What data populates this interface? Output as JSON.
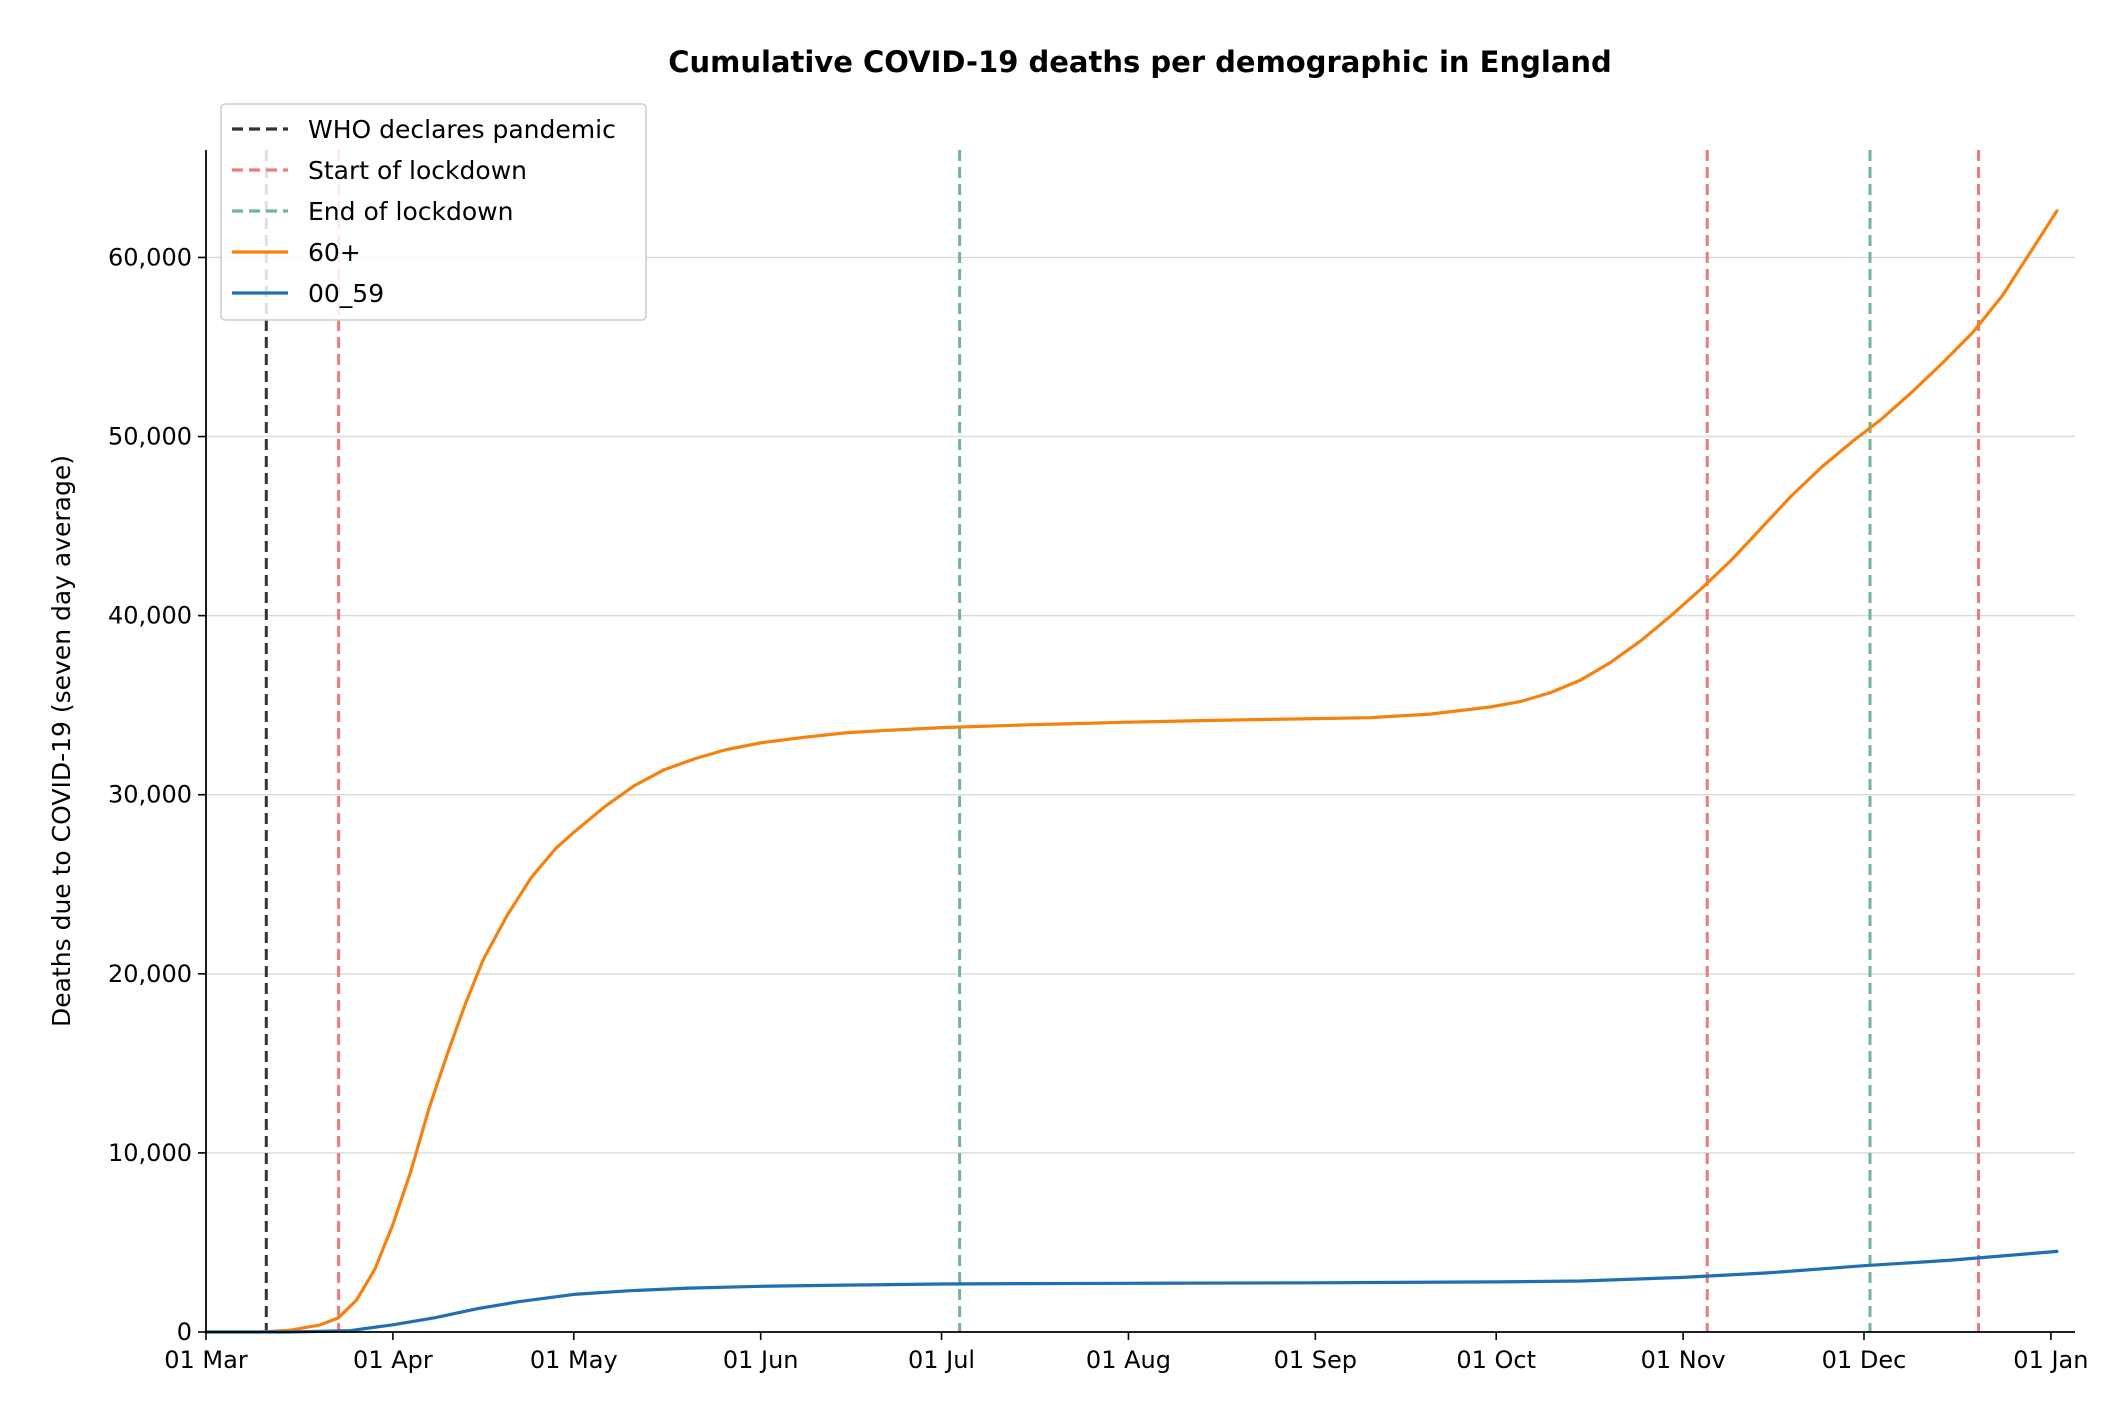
{
  "chart_data": {
    "type": "line",
    "title": "Cumulative COVID-19 deaths per demographic in England",
    "xlabel": "",
    "ylabel": "Deaths due to COVID-19 (seven day average)",
    "x_axis_type": "date",
    "xlim": [
      "2020-03-01",
      "2021-01-05"
    ],
    "ylim": [
      0,
      66000
    ],
    "x_ticks": [
      {
        "date": "2020-03-01",
        "label": "01 Mar"
      },
      {
        "date": "2020-04-01",
        "label": "01 Apr"
      },
      {
        "date": "2020-05-01",
        "label": "01 May"
      },
      {
        "date": "2020-06-01",
        "label": "01 Jun"
      },
      {
        "date": "2020-07-01",
        "label": "01 Jul"
      },
      {
        "date": "2020-08-01",
        "label": "01 Aug"
      },
      {
        "date": "2020-09-01",
        "label": "01 Sep"
      },
      {
        "date": "2020-10-01",
        "label": "01 Oct"
      },
      {
        "date": "2020-11-01",
        "label": "01 Nov"
      },
      {
        "date": "2020-12-01",
        "label": "01 Dec"
      },
      {
        "date": "2021-01-01",
        "label": "01 Jan"
      }
    ],
    "y_ticks": [
      {
        "value": 0,
        "label": "0"
      },
      {
        "value": 10000,
        "label": "10,000"
      },
      {
        "value": 20000,
        "label": "20,000"
      },
      {
        "value": 30000,
        "label": "30,000"
      },
      {
        "value": 40000,
        "label": "40,000"
      },
      {
        "value": 50000,
        "label": "50,000"
      },
      {
        "value": 60000,
        "label": "60,000"
      }
    ],
    "grid": {
      "horizontal": true,
      "vertical": false
    },
    "legend_position": "top-left",
    "series": [
      {
        "name": "60+",
        "color": "#f5820f",
        "points": [
          [
            "2020-03-01",
            0
          ],
          [
            "2020-03-10",
            0
          ],
          [
            "2020-03-15",
            100
          ],
          [
            "2020-03-20",
            400
          ],
          [
            "2020-03-23",
            800
          ],
          [
            "2020-03-26",
            1800
          ],
          [
            "2020-03-29",
            3500
          ],
          [
            "2020-04-01",
            6000
          ],
          [
            "2020-04-04",
            9000
          ],
          [
            "2020-04-07",
            12500
          ],
          [
            "2020-04-10",
            15500
          ],
          [
            "2020-04-13",
            18300
          ],
          [
            "2020-04-16",
            20800
          ],
          [
            "2020-04-20",
            23300
          ],
          [
            "2020-04-24",
            25400
          ],
          [
            "2020-04-28",
            27000
          ],
          [
            "2020-05-01",
            27900
          ],
          [
            "2020-05-06",
            29300
          ],
          [
            "2020-05-11",
            30500
          ],
          [
            "2020-05-16",
            31400
          ],
          [
            "2020-05-21",
            32000
          ],
          [
            "2020-05-26",
            32500
          ],
          [
            "2020-06-01",
            32900
          ],
          [
            "2020-06-08",
            33200
          ],
          [
            "2020-06-15",
            33450
          ],
          [
            "2020-06-22",
            33600
          ],
          [
            "2020-07-01",
            33750
          ],
          [
            "2020-07-15",
            33900
          ],
          [
            "2020-08-01",
            34050
          ],
          [
            "2020-08-15",
            34150
          ],
          [
            "2020-09-01",
            34250
          ],
          [
            "2020-09-10",
            34300
          ],
          [
            "2020-09-20",
            34500
          ],
          [
            "2020-09-30",
            34900
          ],
          [
            "2020-10-05",
            35200
          ],
          [
            "2020-10-10",
            35700
          ],
          [
            "2020-10-15",
            36400
          ],
          [
            "2020-10-20",
            37400
          ],
          [
            "2020-10-25",
            38600
          ],
          [
            "2020-10-30",
            40000
          ],
          [
            "2020-11-04",
            41500
          ],
          [
            "2020-11-09",
            43100
          ],
          [
            "2020-11-14",
            44900
          ],
          [
            "2020-11-19",
            46700
          ],
          [
            "2020-11-24",
            48300
          ],
          [
            "2020-11-29",
            49700
          ],
          [
            "2020-12-04",
            51000
          ],
          [
            "2020-12-09",
            52500
          ],
          [
            "2020-12-14",
            54100
          ],
          [
            "2020-12-19",
            55800
          ],
          [
            "2020-12-24",
            57900
          ],
          [
            "2020-12-29",
            60500
          ],
          [
            "2021-01-02",
            62600
          ]
        ]
      },
      {
        "name": "00_59",
        "color": "#1f6fb2",
        "points": [
          [
            "2020-03-01",
            0
          ],
          [
            "2020-03-15",
            0
          ],
          [
            "2020-03-25",
            80
          ],
          [
            "2020-04-01",
            400
          ],
          [
            "2020-04-08",
            800
          ],
          [
            "2020-04-15",
            1300
          ],
          [
            "2020-04-22",
            1700
          ],
          [
            "2020-05-01",
            2100
          ],
          [
            "2020-05-10",
            2300
          ],
          [
            "2020-05-20",
            2450
          ],
          [
            "2020-06-01",
            2550
          ],
          [
            "2020-06-15",
            2620
          ],
          [
            "2020-07-01",
            2680
          ],
          [
            "2020-07-15",
            2700
          ],
          [
            "2020-08-01",
            2720
          ],
          [
            "2020-09-01",
            2750
          ],
          [
            "2020-10-01",
            2800
          ],
          [
            "2020-10-15",
            2850
          ],
          [
            "2020-11-01",
            3050
          ],
          [
            "2020-11-15",
            3300
          ],
          [
            "2020-12-01",
            3700
          ],
          [
            "2020-12-15",
            4000
          ],
          [
            "2021-01-02",
            4500
          ]
        ]
      }
    ],
    "events": [
      {
        "series": "WHO declares pandemic",
        "date": "2020-03-11",
        "color": "#333333"
      },
      {
        "series": "Start of lockdown",
        "date": "2020-03-23",
        "color": "#f07a78"
      },
      {
        "series": "End of lockdown",
        "date": "2020-07-04",
        "color": "#72b59b"
      },
      {
        "series": "Start of lockdown",
        "date": "2020-11-05",
        "color": "#f07a78"
      },
      {
        "series": "End of lockdown",
        "date": "2020-12-02",
        "color": "#72b59b"
      },
      {
        "series": "Start of lockdown",
        "date": "2020-12-20",
        "color": "#f07a78"
      }
    ],
    "legend": [
      {
        "label": "WHO declares pandemic",
        "style": "dashed",
        "color": "#333333"
      },
      {
        "label": "Start of lockdown",
        "style": "dashed",
        "color": "#f07a78"
      },
      {
        "label": "End of lockdown",
        "style": "dashed",
        "color": "#72b59b"
      },
      {
        "label": "60+",
        "style": "solid",
        "color": "#f5820f"
      },
      {
        "label": "00_59",
        "style": "solid",
        "color": "#1f6fb2"
      }
    ]
  }
}
